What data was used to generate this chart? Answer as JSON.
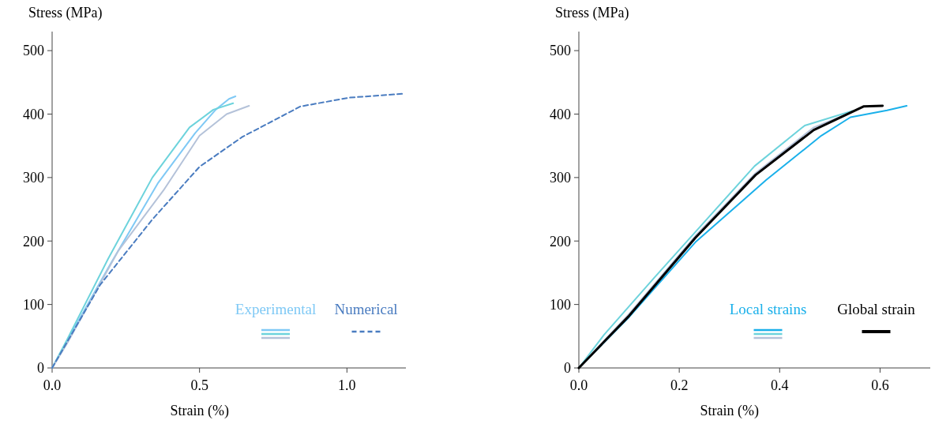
{
  "chart_data": [
    {
      "type": "line",
      "xlabel": "Strain (%)",
      "ylabel": "Stress (MPa)",
      "xlim": [
        0,
        1.2
      ],
      "xticks": [
        {
          "value": 0,
          "label": "0.0"
        },
        {
          "value": 0.5,
          "label": "0.5"
        },
        {
          "value": 1,
          "label": "1.0"
        }
      ],
      "ylim": [
        0,
        530
      ],
      "yticks": [
        0,
        100,
        200,
        300,
        400,
        500
      ],
      "legend": "bottom right",
      "grid": false,
      "series": [
        {
          "name": "Experimental",
          "color": "#7fc9f5",
          "x": [
            0,
            0.05,
            0.198,
            0.36,
            0.485,
            0.555,
            0.6,
            0.622
          ],
          "values": [
            0,
            42,
            164,
            292,
            370,
            407,
            424,
            428
          ]
        },
        {
          "color": "#6dd3dc",
          "x": [
            0,
            0.05,
            0.19,
            0.34,
            0.466,
            0.547,
            0.614
          ],
          "values": [
            0,
            44,
            172,
            300,
            379,
            407,
            417
          ]
        },
        {
          "color": "#b4c2d9",
          "x": [
            0,
            0.05,
            0.225,
            0.378,
            0.5,
            0.592,
            0.668
          ],
          "values": [
            0,
            38,
            185,
            280,
            366,
            400,
            413
          ]
        },
        {
          "name": "Numerical",
          "color": "#4a7cc0",
          "line_style": "dashed",
          "x": [
            0,
            0.163,
            0.34,
            0.5,
            0.645,
            0.842,
            1.01,
            1.19
          ],
          "values": [
            0,
            131,
            234,
            317,
            364,
            412,
            426,
            432
          ]
        }
      ]
    },
    {
      "type": "line",
      "xlabel": "Strain (%)",
      "ylabel": "Stress (MPa)",
      "xlim": [
        0,
        0.7
      ],
      "xticks": [
        {
          "value": 0,
          "label": "0.0"
        },
        {
          "value": 0.2,
          "label": "0.2"
        },
        {
          "value": 0.4,
          "label": "0.4"
        },
        {
          "value": 0.6,
          "label": "0.6"
        }
      ],
      "ylim": [
        0,
        530
      ],
      "yticks": [
        0,
        100,
        200,
        300,
        400,
        500
      ],
      "legend": "bottom right",
      "grid": false,
      "series": [
        {
          "name": "Local strains",
          "color": "#1ab0ea",
          "x": [
            0,
            0.1,
            0.232,
            0.373,
            0.483,
            0.541,
            0.614,
            0.653
          ],
          "values": [
            0,
            80,
            198,
            296,
            366,
            395,
            406,
            413
          ]
        },
        {
          "color": "#6dd3dc",
          "x": [
            0,
            0.05,
            0.15,
            0.25,
            0.35,
            0.45,
            0.545
          ],
          "values": [
            0,
            52,
            142,
            230,
            318,
            382,
            405
          ]
        },
        {
          "color": "#b4c2d9",
          "x": [
            0,
            0.1,
            0.232,
            0.352,
            0.468,
            0.54
          ],
          "values": [
            0,
            85,
            208,
            307,
            379,
            402
          ]
        },
        {
          "name": "Global strain",
          "color": "#000000",
          "x": [
            0,
            0.1,
            0.232,
            0.352,
            0.468,
            0.567,
            0.605
          ],
          "values": [
            0,
            82,
            205,
            304,
            375,
            412,
            413
          ]
        }
      ]
    }
  ]
}
